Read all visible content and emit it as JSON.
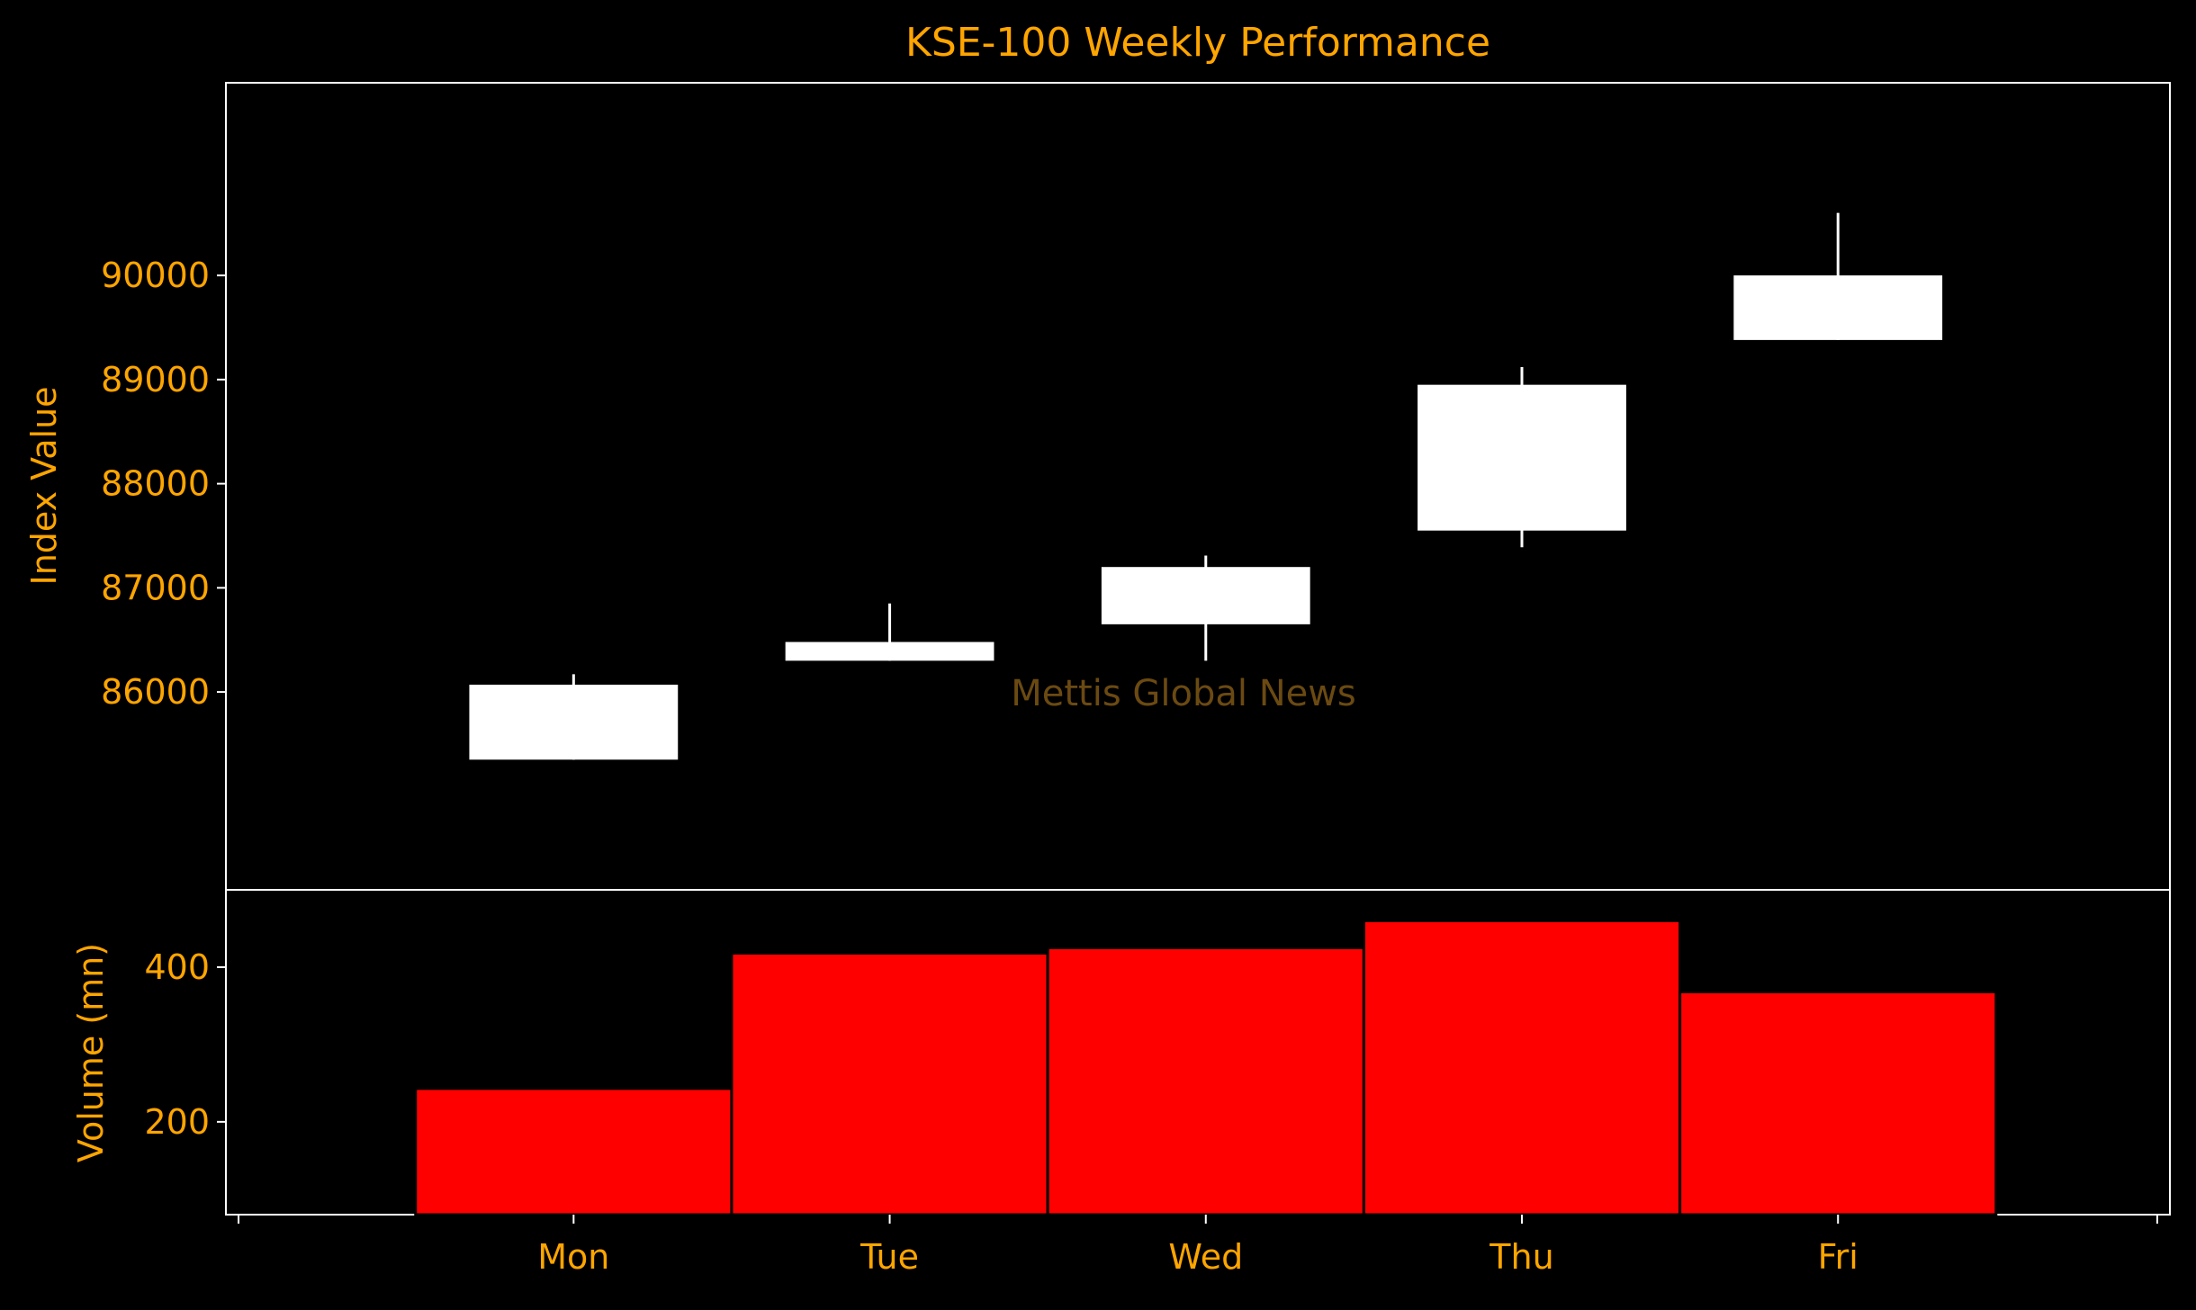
{
  "colors": {
    "background": "#000000",
    "text": "#FFA500",
    "frame": "#FFFFFF",
    "candle": "#FFFFFF",
    "volume_bar": "#FF0000",
    "volume_bar_edge": "#000000",
    "watermark": "#6B4A12"
  },
  "chart_data": [
    {
      "type": "candlestick",
      "title": "KSE-100 Weekly Performance",
      "xlabel": "",
      "ylabel": "Index Value",
      "categories": [
        "Mon",
        "Tue",
        "Wed",
        "Thu",
        "Fri"
      ],
      "open": [
        85350,
        86300,
        86650,
        87550,
        89380
      ],
      "close": [
        86070,
        86480,
        87200,
        88950,
        90000
      ],
      "high": [
        86170,
        86850,
        87310,
        89120,
        90600
      ],
      "low": [
        85350,
        86300,
        86300,
        87390,
        89380
      ],
      "ylim": [
        84100,
        91850
      ],
      "yticks": [
        86000,
        87000,
        88000,
        89000,
        90000
      ],
      "ytick_labels": [
        "86000",
        "87000",
        "88000",
        "89000",
        "90000"
      ],
      "watermark": "Mettis Global News",
      "grid": false
    },
    {
      "type": "bar",
      "title": "",
      "xlabel": "",
      "ylabel": "Volume (mn)",
      "categories": [
        "Mon",
        "Tue",
        "Wed",
        "Thu",
        "Fri"
      ],
      "values": [
        243,
        418,
        425,
        460,
        368
      ],
      "ylim": [
        80,
        500
      ],
      "yticks": [
        200,
        400
      ],
      "ytick_labels": [
        "200",
        "400"
      ],
      "xtick_labels": [
        "Mon",
        "Tue",
        "Wed",
        "Thu",
        "Fri"
      ],
      "xlim": [
        -1.1,
        5.05
      ],
      "grid": false
    }
  ]
}
